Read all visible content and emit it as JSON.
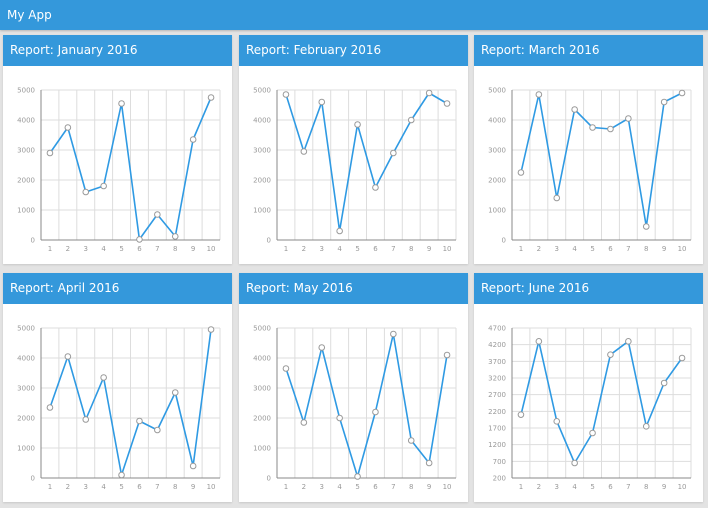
{
  "app": {
    "title": "My App"
  },
  "panels": [
    {
      "title": "Report: January 2016"
    },
    {
      "title": "Report: February 2016"
    },
    {
      "title": "Report: March 2016"
    },
    {
      "title": "Report: April 2016"
    },
    {
      "title": "Report: May 2016"
    },
    {
      "title": "Report: June 2016"
    }
  ],
  "colors": {
    "accent": "#3498db",
    "line": "#2f9ae3",
    "grid": "#dddddd",
    "background": "#e3e3e3"
  },
  "chart_data": [
    {
      "type": "line",
      "title": "Report: January 2016",
      "categories": [
        "1",
        "2",
        "3",
        "4",
        "5",
        "6",
        "7",
        "8",
        "9",
        "10"
      ],
      "values": [
        2900,
        3750,
        1600,
        1800,
        4550,
        20,
        850,
        120,
        3350,
        4750
      ],
      "ylim": [
        0,
        5000
      ],
      "yticks": [
        0,
        1000,
        2000,
        3000,
        4000,
        5000
      ],
      "grid": true
    },
    {
      "type": "line",
      "title": "Report: February 2016",
      "categories": [
        "1",
        "2",
        "3",
        "4",
        "5",
        "6",
        "7",
        "8",
        "9",
        "10"
      ],
      "values": [
        4850,
        2950,
        4600,
        300,
        3850,
        1750,
        2900,
        4000,
        4900,
        4550
      ],
      "ylim": [
        0,
        5000
      ],
      "yticks": [
        0,
        1000,
        2000,
        3000,
        4000,
        5000
      ],
      "grid": true
    },
    {
      "type": "line",
      "title": "Report: March 2016",
      "categories": [
        "1",
        "2",
        "3",
        "4",
        "5",
        "6",
        "7",
        "8",
        "9",
        "10"
      ],
      "values": [
        2250,
        4850,
        1400,
        4350,
        3750,
        3700,
        4050,
        450,
        4600,
        4900
      ],
      "ylim": [
        0,
        5000
      ],
      "yticks": [
        0,
        1000,
        2000,
        3000,
        4000,
        5000
      ],
      "grid": true
    },
    {
      "type": "line",
      "title": "Report: April 2016",
      "categories": [
        "1",
        "2",
        "3",
        "4",
        "5",
        "6",
        "7",
        "8",
        "9",
        "10"
      ],
      "values": [
        2350,
        4050,
        1950,
        3350,
        100,
        1900,
        1600,
        2850,
        400,
        4950
      ],
      "ylim": [
        0,
        5000
      ],
      "yticks": [
        0,
        1000,
        2000,
        3000,
        4000,
        5000
      ],
      "grid": true
    },
    {
      "type": "line",
      "title": "Report: May 2016",
      "categories": [
        "1",
        "2",
        "3",
        "4",
        "5",
        "6",
        "7",
        "8",
        "9",
        "10"
      ],
      "values": [
        3650,
        1850,
        4350,
        2000,
        50,
        2200,
        4800,
        1250,
        500,
        4100
      ],
      "ylim": [
        0,
        5000
      ],
      "yticks": [
        0,
        1000,
        2000,
        3000,
        4000,
        5000
      ],
      "grid": true
    },
    {
      "type": "line",
      "title": "Report: June 2016",
      "categories": [
        "1",
        "2",
        "3",
        "4",
        "5",
        "6",
        "7",
        "8",
        "9",
        "10"
      ],
      "values": [
        2100,
        4300,
        1900,
        650,
        1550,
        3900,
        4300,
        1750,
        3050,
        3800
      ],
      "ylim": [
        200,
        4700
      ],
      "yticks": [
        200,
        700,
        1200,
        1700,
        2200,
        2700,
        3200,
        3700,
        4200,
        4700
      ],
      "grid": true
    }
  ]
}
